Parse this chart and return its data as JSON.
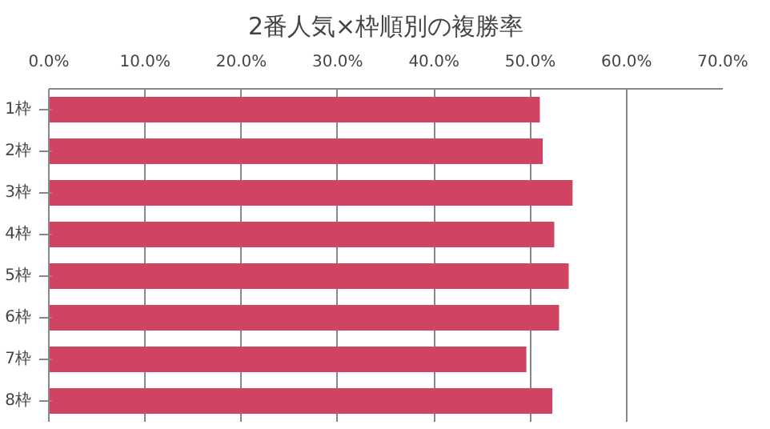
{
  "chart_data": {
    "type": "bar",
    "orientation": "horizontal",
    "title": "2番人気×枠順別の複勝率",
    "categories": [
      "1枠",
      "2枠",
      "3枠",
      "4枠",
      "5枠",
      "6枠",
      "7枠",
      "8枠"
    ],
    "values": [
      51.0,
      51.3,
      54.4,
      52.5,
      54.0,
      53.0,
      49.6,
      52.3
    ],
    "color": "#d04462",
    "xlim": [
      0,
      70
    ],
    "xticks": [
      {
        "value": 0,
        "label": "0.0%"
      },
      {
        "value": 10,
        "label": "10.0%"
      },
      {
        "value": 20,
        "label": "20.0%"
      },
      {
        "value": 30,
        "label": "30.0%"
      },
      {
        "value": 40,
        "label": "40.0%"
      },
      {
        "value": 50,
        "label": "50.0%"
      },
      {
        "value": 60,
        "label": "60.0%"
      },
      {
        "value": 70,
        "label": "70.0%"
      }
    ],
    "grid": "x"
  }
}
